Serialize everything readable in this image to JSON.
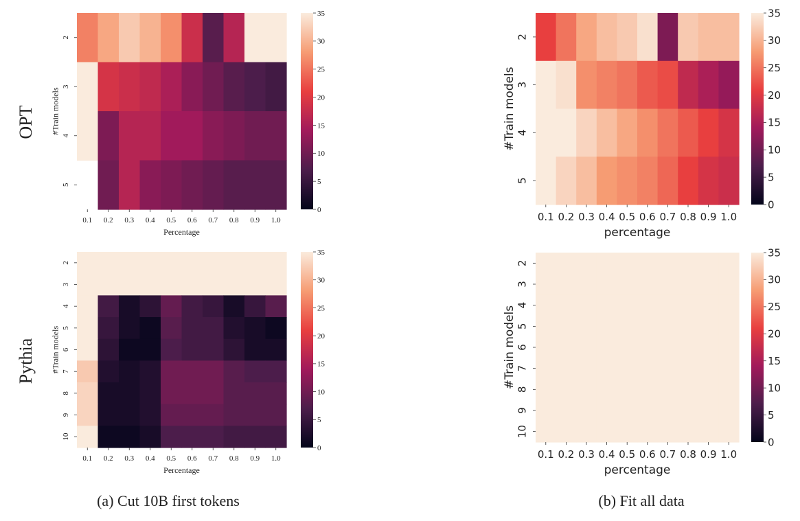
{
  "row_labels": [
    "OPT",
    "Pythia"
  ],
  "captions": {
    "a": "(a) Cut 10B first tokens",
    "b": "(b) Fit all data"
  },
  "colormap": {
    "name": "rocket",
    "stops": [
      "#03051a",
      "#4c1d4b",
      "#a11a5b",
      "#e83f3f",
      "#f69c73",
      "#faebdd"
    ]
  },
  "chart_data": [
    {
      "id": "opt_cut",
      "type": "heatmap",
      "title": "",
      "xlabel": "Percentage",
      "ylabel": "#Train models",
      "x_categories": [
        "0.1",
        "0.2",
        "0.3",
        "0.4",
        "0.5",
        "0.6",
        "0.7",
        "0.8",
        "0.9",
        "1.0"
      ],
      "y_categories": [
        "2",
        "3",
        "4",
        "5"
      ],
      "vmin": 0,
      "vmax": 35,
      "colorbar_ticks": [
        0,
        5,
        10,
        15,
        20,
        25,
        30,
        35
      ],
      "values": [
        [
          26,
          29,
          32,
          30,
          27,
          18,
          8,
          16,
          35,
          35
        ],
        [
          35,
          19,
          18,
          17,
          15,
          12,
          10,
          8,
          7,
          6
        ],
        [
          35,
          11,
          16,
          16,
          14,
          14,
          12,
          11,
          10,
          10
        ],
        [
          null,
          10,
          16,
          12,
          11,
          10,
          9,
          8,
          8,
          8
        ]
      ]
    },
    {
      "id": "opt_fit",
      "type": "heatmap",
      "title": "",
      "xlabel": "percentage",
      "ylabel": "#Train models",
      "x_categories": [
        "0.1",
        "0.2",
        "0.3",
        "0.4",
        "0.5",
        "0.6",
        "0.7",
        "0.8",
        "0.9",
        "1.0"
      ],
      "y_categories": [
        "2",
        "3",
        "4",
        "5"
      ],
      "vmin": 0,
      "vmax": 35,
      "colorbar_ticks": [
        0,
        5,
        10,
        15,
        20,
        25,
        30,
        35
      ],
      "values": [
        [
          21,
          25,
          29,
          31,
          32,
          34,
          11,
          32,
          31,
          31
        ],
        [
          35,
          34,
          27,
          26,
          25,
          23,
          22,
          17,
          15,
          13
        ],
        [
          35,
          35,
          33,
          31,
          29,
          27,
          25,
          23,
          21,
          19
        ],
        [
          35,
          33,
          31,
          28,
          27,
          26,
          24,
          21,
          19,
          18
        ]
      ]
    },
    {
      "id": "pythia_cut",
      "type": "heatmap",
      "title": "",
      "xlabel": "Percentage",
      "ylabel": "#Train models",
      "x_categories": [
        "0.1",
        "0.2",
        "0.3",
        "0.4",
        "0.5",
        "0.6",
        "0.7",
        "0.8",
        "0.9",
        "1.0"
      ],
      "y_categories": [
        "2",
        "3",
        "4",
        "5",
        "6",
        "7",
        "8",
        "9",
        "10"
      ],
      "vmin": 0,
      "vmax": 35,
      "colorbar_ticks": [
        0,
        5,
        10,
        15,
        20,
        25,
        30,
        35
      ],
      "values": [
        [
          35,
          35,
          35,
          35,
          35,
          35,
          35,
          35,
          35,
          35
        ],
        [
          35,
          35,
          35,
          35,
          35,
          35,
          35,
          35,
          35,
          35
        ],
        [
          35,
          6,
          2,
          4,
          9,
          6,
          5,
          2,
          5,
          8
        ],
        [
          35,
          5,
          2,
          1,
          8,
          6,
          6,
          3,
          2,
          1
        ],
        [
          35,
          4,
          1,
          1,
          7,
          6,
          6,
          4,
          2,
          2
        ],
        [
          32,
          3,
          2,
          3,
          10,
          10,
          10,
          8,
          7,
          7
        ],
        [
          33,
          2,
          2,
          3,
          10,
          10,
          10,
          8,
          8,
          8
        ],
        [
          33,
          2,
          2,
          3,
          9,
          9,
          9,
          8,
          8,
          8
        ],
        [
          35,
          1,
          1,
          2,
          7,
          7,
          7,
          6,
          6,
          6
        ]
      ]
    },
    {
      "id": "pythia_fit",
      "type": "heatmap",
      "title": "",
      "xlabel": "percentage",
      "ylabel": "#Train models",
      "x_categories": [
        "0.1",
        "0.2",
        "0.3",
        "0.4",
        "0.5",
        "0.6",
        "0.7",
        "0.8",
        "0.9",
        "1.0"
      ],
      "y_categories": [
        "2",
        "3",
        "4",
        "5",
        "6",
        "7",
        "8",
        "9",
        "10"
      ],
      "vmin": 0,
      "vmax": 35,
      "colorbar_ticks": [
        0,
        5,
        10,
        15,
        20,
        25,
        30,
        35
      ],
      "values": [
        [
          35,
          35,
          35,
          35,
          35,
          35,
          35,
          35,
          35,
          35
        ],
        [
          35,
          35,
          35,
          35,
          35,
          35,
          35,
          35,
          35,
          35
        ],
        [
          35,
          35,
          35,
          35,
          35,
          35,
          35,
          35,
          35,
          35
        ],
        [
          35,
          35,
          35,
          35,
          35,
          35,
          35,
          35,
          35,
          35
        ],
        [
          35,
          35,
          35,
          35,
          35,
          35,
          35,
          35,
          35,
          35
        ],
        [
          35,
          35,
          35,
          35,
          35,
          35,
          35,
          35,
          35,
          35
        ],
        [
          35,
          35,
          35,
          35,
          35,
          35,
          35,
          35,
          35,
          35
        ],
        [
          35,
          35,
          35,
          35,
          35,
          35,
          35,
          35,
          35,
          35
        ],
        [
          35,
          35,
          35,
          35,
          35,
          35,
          35,
          35,
          35,
          35
        ]
      ]
    }
  ]
}
